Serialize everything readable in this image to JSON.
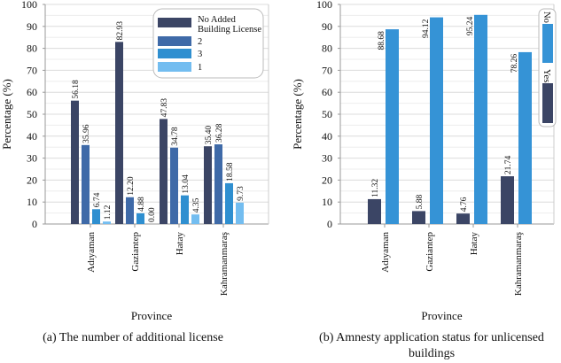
{
  "chart_data": [
    {
      "type": "bar",
      "caption": "(a) The number of additional license",
      "xlabel": "Province",
      "ylabel": "Percentage (%)",
      "ylim": [
        0,
        100
      ],
      "yticks": [
        0,
        10,
        20,
        30,
        40,
        50,
        60,
        70,
        80,
        90,
        100
      ],
      "grid": true,
      "legend_position": "top-right",
      "categories": [
        "Adıyaman",
        "Gaziantep",
        "Hatay",
        "Kahramanmaraş"
      ],
      "series": [
        {
          "name": "No Added Building License",
          "legend_lines": [
            "No Added",
            "Building License"
          ],
          "color": "#3b4565",
          "values": [
            56.18,
            82.93,
            47.83,
            35.4
          ],
          "labels": [
            "56.18",
            "82.93",
            "47.83",
            "35.40"
          ]
        },
        {
          "name": "2",
          "legend_lines": [
            "2"
          ],
          "color": "#3f6aa8",
          "values": [
            35.96,
            12.2,
            34.78,
            36.28
          ],
          "labels": [
            "35.96",
            "12.20",
            "34.78",
            "36.28"
          ]
        },
        {
          "name": "3",
          "legend_lines": [
            "3"
          ],
          "color": "#2f8fd0",
          "values": [
            6.74,
            4.88,
            13.04,
            18.58
          ],
          "labels": [
            "6.74",
            "4.88",
            "13.04",
            "18.58"
          ]
        },
        {
          "name": "1",
          "legend_lines": [
            "1"
          ],
          "color": "#73bdf0",
          "values": [
            1.12,
            0.0,
            4.35,
            9.73
          ],
          "labels": [
            "1.12",
            "0.00",
            "4.35",
            "9.73"
          ]
        }
      ]
    },
    {
      "type": "bar",
      "caption": "(b) Amnesty application status for unlicensed buildings",
      "caption_lines": [
        "(b) Amnesty application status for unlicensed",
        "buildings"
      ],
      "xlabel": "Province",
      "ylabel": "Percentage (%)",
      "ylim": [
        0,
        100
      ],
      "yticks": [
        0,
        10,
        20,
        30,
        40,
        50,
        60,
        70,
        80,
        90,
        100
      ],
      "grid": true,
      "legend_position": "top-right",
      "categories": [
        "Adıyaman",
        "Gaziantep",
        "Hatay",
        "Kahramanmaraş"
      ],
      "series": [
        {
          "name": "Yes",
          "color": "#3b4565",
          "values": [
            11.32,
            5.88,
            4.76,
            21.74
          ],
          "labels": [
            "11.32",
            "5.88",
            "4.76",
            "21.74"
          ]
        },
        {
          "name": "No",
          "color": "#3593d6",
          "values": [
            88.68,
            94.12,
            95.24,
            78.26
          ],
          "labels": [
            "88.68",
            "94.12",
            "95.24",
            "78.26"
          ]
        }
      ]
    }
  ]
}
